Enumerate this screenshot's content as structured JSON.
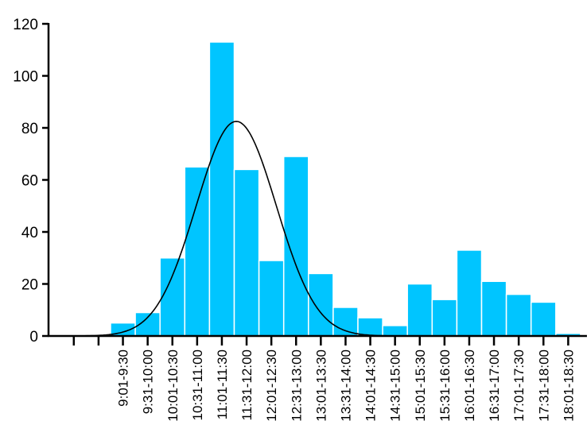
{
  "chart_data": {
    "type": "bar",
    "title": "",
    "xlabel": "",
    "ylabel": "",
    "ylim": [
      0,
      120
    ],
    "yticks": [
      0,
      20,
      40,
      60,
      80,
      100,
      120
    ],
    "grid": false,
    "categories": [
      "9:01-9:30",
      "9:31-10:00",
      "10:01-10:30",
      "10:31-11:00",
      "11:01-11:30",
      "11:31-12:00",
      "12:01-12:30",
      "12:31-13:00",
      "13:01-13:30",
      "13:31-14:00",
      "14:01-14:30",
      "14:31-15:00",
      "15:01-15:30",
      "15:31-16:00",
      "16:01-16:30",
      "16:31-17:00",
      "17:01-17:30",
      "17:31-18:00",
      "18:01-18:30"
    ],
    "values": [
      5,
      9,
      30,
      65,
      113,
      64,
      29,
      69,
      24,
      11,
      7,
      4,
      20,
      14,
      33,
      21,
      16,
      13,
      1
    ],
    "bar_color": "#00c5ff",
    "overlay": {
      "type": "normal-curve",
      "peak": 82.5,
      "center_category": "11:31-12:00",
      "color": "#000000"
    }
  }
}
